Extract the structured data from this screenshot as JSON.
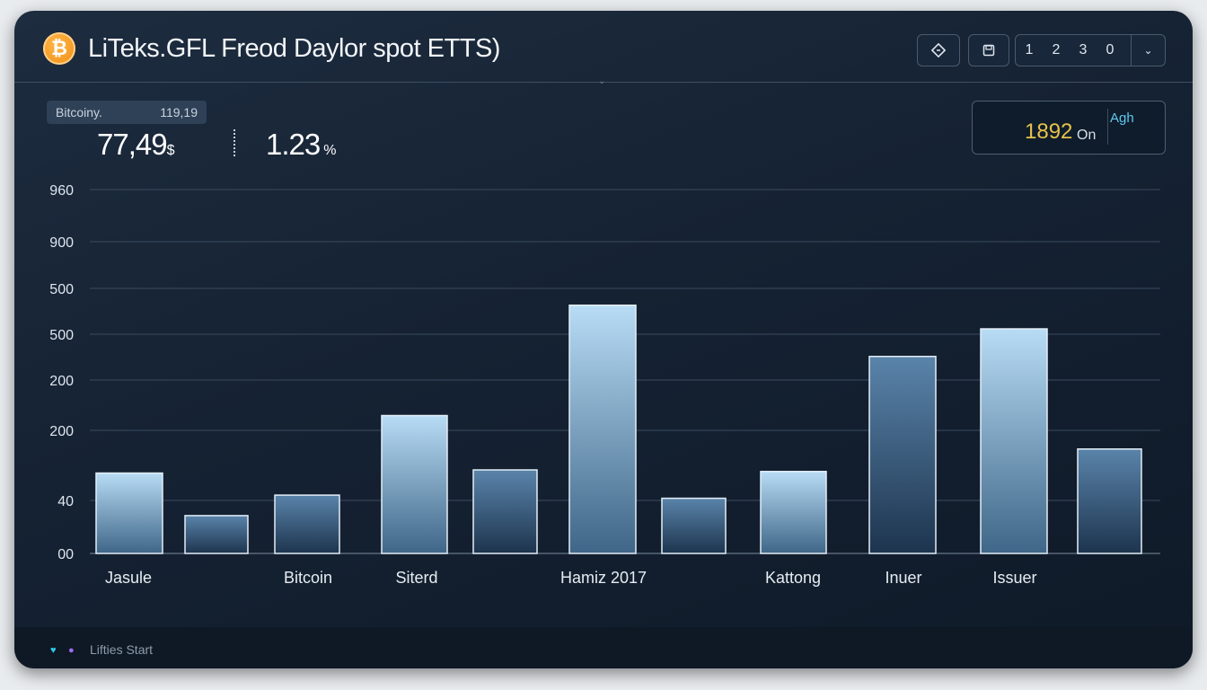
{
  "header": {
    "coin_symbol": "₿",
    "title": "LiTeks.GFL Freod Daylor spot ETTS)",
    "pages": [
      "1",
      "2",
      "3",
      "0"
    ]
  },
  "metric": {
    "label": "Bitcoiny.",
    "small_value": "119,19",
    "value": "77,49",
    "value_unit": "$",
    "percent": "1.23",
    "percent_unit": "%"
  },
  "stat": {
    "value": "1892",
    "unit": "On",
    "tag": "Agh"
  },
  "footer": {
    "label": "Lifties Start"
  },
  "colors": {
    "accent_gold": "#f39a1e",
    "stat_yellow": "#e6c24a",
    "tag_cyan": "#5ec8f0",
    "bar_light": "#a9d2f0",
    "bar_dark": "#2c4a68",
    "heart": "#2ec9e8",
    "dot": "#9b6cf0"
  },
  "icons": [
    "bitcoin-icon",
    "diamond-icon",
    "save-icon",
    "chevron-down-icon",
    "heart-icon",
    "dot-icon"
  ],
  "chart_data": {
    "type": "bar",
    "ytick_labels": [
      "960",
      "900",
      "500",
      "500",
      "200",
      "200",
      "40",
      "00"
    ],
    "xtick_labels": [
      "Jasule",
      "Bitcoin",
      "Siterd",
      "Hamiz 2017",
      "Kattong",
      "Inuer",
      "Issuer"
    ],
    "values": [
      204,
      96,
      148,
      350,
      212,
      630,
      140,
      208,
      500,
      570,
      265
    ],
    "ylim": [
      0,
      960
    ],
    "grid": true
  }
}
